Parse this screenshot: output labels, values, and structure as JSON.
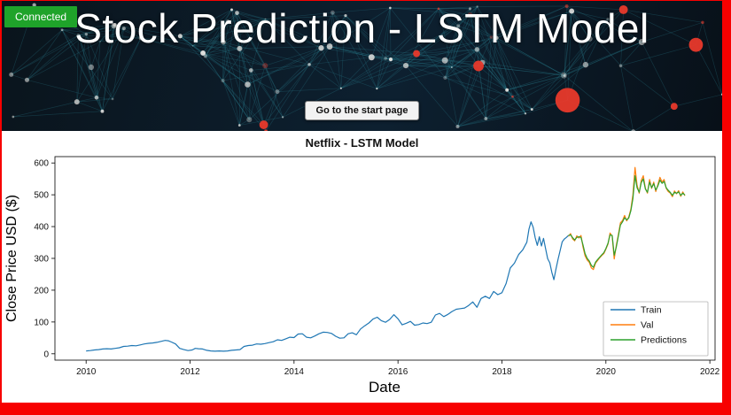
{
  "page": {
    "border_color": "#f70000"
  },
  "banner": {
    "title": "Stock Prediction - LSTM Model",
    "status_badge": "Connected",
    "status_color": "#1fa32a",
    "start_button": "Go to the start page",
    "accent_dot_color": "#e8392b",
    "line_color": "#2a8496"
  },
  "chart_data": {
    "type": "line",
    "title": "Netflix - LSTM Model",
    "xlabel": "Date",
    "ylabel": "Close Price USD ($)",
    "xlim": [
      2009.4,
      2022.1
    ],
    "ylim": [
      -20,
      620
    ],
    "xticks": [
      2010,
      2012,
      2014,
      2016,
      2018,
      2020,
      2022
    ],
    "yticks": [
      0,
      100,
      200,
      300,
      400,
      500,
      600
    ],
    "grid": false,
    "legend": {
      "position": "lower right",
      "entries": [
        "Train",
        "Val",
        "Predictions"
      ]
    },
    "series": [
      {
        "name": "Train",
        "color": "#1f77b4",
        "points": [
          [
            2010.0,
            9
          ],
          [
            2010.08,
            10
          ],
          [
            2010.16,
            12
          ],
          [
            2010.24,
            13
          ],
          [
            2010.32,
            15
          ],
          [
            2010.4,
            16
          ],
          [
            2010.48,
            15
          ],
          [
            2010.56,
            17
          ],
          [
            2010.64,
            19
          ],
          [
            2010.72,
            23
          ],
          [
            2010.8,
            24
          ],
          [
            2010.88,
            26
          ],
          [
            2010.96,
            25
          ],
          [
            2011.04,
            28
          ],
          [
            2011.12,
            31
          ],
          [
            2011.2,
            33
          ],
          [
            2011.28,
            34
          ],
          [
            2011.36,
            36
          ],
          [
            2011.44,
            39
          ],
          [
            2011.52,
            42
          ],
          [
            2011.58,
            41
          ],
          [
            2011.64,
            37
          ],
          [
            2011.72,
            31
          ],
          [
            2011.8,
            17
          ],
          [
            2011.88,
            13
          ],
          [
            2011.96,
            10
          ],
          [
            2012.04,
            12
          ],
          [
            2012.1,
            17
          ],
          [
            2012.16,
            16
          ],
          [
            2012.24,
            15
          ],
          [
            2012.32,
            11
          ],
          [
            2012.4,
            9
          ],
          [
            2012.48,
            8
          ],
          [
            2012.56,
            9
          ],
          [
            2012.64,
            8
          ],
          [
            2012.72,
            9
          ],
          [
            2012.8,
            11
          ],
          [
            2012.88,
            12
          ],
          [
            2012.96,
            13
          ],
          [
            2013.04,
            23
          ],
          [
            2013.12,
            26
          ],
          [
            2013.2,
            27
          ],
          [
            2013.28,
            31
          ],
          [
            2013.36,
            30
          ],
          [
            2013.44,
            32
          ],
          [
            2013.52,
            35
          ],
          [
            2013.6,
            38
          ],
          [
            2013.68,
            44
          ],
          [
            2013.76,
            42
          ],
          [
            2013.84,
            47
          ],
          [
            2013.92,
            52
          ],
          [
            2014.0,
            51
          ],
          [
            2014.08,
            62
          ],
          [
            2014.16,
            63
          ],
          [
            2014.24,
            52
          ],
          [
            2014.32,
            50
          ],
          [
            2014.4,
            56
          ],
          [
            2014.48,
            63
          ],
          [
            2014.56,
            68
          ],
          [
            2014.64,
            67
          ],
          [
            2014.72,
            64
          ],
          [
            2014.8,
            55
          ],
          [
            2014.88,
            49
          ],
          [
            2014.96,
            50
          ],
          [
            2015.04,
            63
          ],
          [
            2015.12,
            66
          ],
          [
            2015.2,
            60
          ],
          [
            2015.28,
            78
          ],
          [
            2015.36,
            88
          ],
          [
            2015.44,
            97
          ],
          [
            2015.52,
            109
          ],
          [
            2015.6,
            115
          ],
          [
            2015.68,
            104
          ],
          [
            2015.76,
            99
          ],
          [
            2015.84,
            108
          ],
          [
            2015.92,
            123
          ],
          [
            2016.0,
            110
          ],
          [
            2016.08,
            91
          ],
          [
            2016.16,
            96
          ],
          [
            2016.24,
            102
          ],
          [
            2016.32,
            90
          ],
          [
            2016.4,
            92
          ],
          [
            2016.48,
            97
          ],
          [
            2016.56,
            95
          ],
          [
            2016.64,
            99
          ],
          [
            2016.72,
            122
          ],
          [
            2016.8,
            127
          ],
          [
            2016.88,
            117
          ],
          [
            2016.96,
            124
          ],
          [
            2017.04,
            133
          ],
          [
            2017.12,
            140
          ],
          [
            2017.2,
            142
          ],
          [
            2017.28,
            144
          ],
          [
            2017.36,
            152
          ],
          [
            2017.44,
            163
          ],
          [
            2017.52,
            146
          ],
          [
            2017.6,
            174
          ],
          [
            2017.68,
            181
          ],
          [
            2017.76,
            174
          ],
          [
            2017.84,
            196
          ],
          [
            2017.92,
            186
          ],
          [
            2018.0,
            192
          ],
          [
            2018.08,
            221
          ],
          [
            2018.16,
            270
          ],
          [
            2018.24,
            285
          ],
          [
            2018.32,
            312
          ],
          [
            2018.4,
            327
          ],
          [
            2018.48,
            351
          ],
          [
            2018.52,
            392
          ],
          [
            2018.56,
            415
          ],
          [
            2018.6,
            398
          ],
          [
            2018.64,
            365
          ],
          [
            2018.68,
            341
          ],
          [
            2018.72,
            368
          ],
          [
            2018.76,
            339
          ],
          [
            2018.8,
            363
          ],
          [
            2018.84,
            330
          ],
          [
            2018.88,
            299
          ],
          [
            2018.92,
            286
          ],
          [
            2018.96,
            256
          ],
          [
            2019.0,
            233
          ],
          [
            2019.04,
            267
          ],
          [
            2019.08,
            297
          ],
          [
            2019.12,
            325
          ],
          [
            2019.16,
            352
          ],
          [
            2019.2,
            361
          ],
          [
            2019.24,
            366
          ],
          [
            2019.28,
            372
          ]
        ]
      },
      {
        "name": "Val",
        "color": "#ff7f0e",
        "points": [
          [
            2019.28,
            369
          ],
          [
            2019.32,
            378
          ],
          [
            2019.36,
            361
          ],
          [
            2019.4,
            355
          ],
          [
            2019.44,
            371
          ],
          [
            2019.48,
            364
          ],
          [
            2019.52,
            372
          ],
          [
            2019.56,
            335
          ],
          [
            2019.6,
            308
          ],
          [
            2019.64,
            295
          ],
          [
            2019.68,
            288
          ],
          [
            2019.72,
            270
          ],
          [
            2019.76,
            265
          ],
          [
            2019.8,
            285
          ],
          [
            2019.84,
            293
          ],
          [
            2019.88,
            302
          ],
          [
            2019.92,
            309
          ],
          [
            2019.96,
            315
          ],
          [
            2020.0,
            329
          ],
          [
            2020.04,
            345
          ],
          [
            2020.08,
            380
          ],
          [
            2020.12,
            369
          ],
          [
            2020.16,
            298
          ],
          [
            2020.2,
            340
          ],
          [
            2020.24,
            375
          ],
          [
            2020.28,
            412
          ],
          [
            2020.32,
            419
          ],
          [
            2020.36,
            435
          ],
          [
            2020.4,
            418
          ],
          [
            2020.44,
            430
          ],
          [
            2020.48,
            455
          ],
          [
            2020.52,
            500
          ],
          [
            2020.56,
            586
          ],
          [
            2020.6,
            530
          ],
          [
            2020.64,
            505
          ],
          [
            2020.68,
            545
          ],
          [
            2020.72,
            560
          ],
          [
            2020.76,
            520
          ],
          [
            2020.8,
            505
          ],
          [
            2020.84,
            548
          ],
          [
            2020.88,
            520
          ],
          [
            2020.92,
            540
          ],
          [
            2020.96,
            510
          ],
          [
            2021.0,
            532
          ],
          [
            2021.04,
            555
          ],
          [
            2021.08,
            540
          ],
          [
            2021.12,
            548
          ],
          [
            2021.16,
            520
          ],
          [
            2021.2,
            510
          ],
          [
            2021.24,
            505
          ],
          [
            2021.28,
            494
          ],
          [
            2021.32,
            512
          ],
          [
            2021.36,
            503
          ],
          [
            2021.4,
            513
          ],
          [
            2021.44,
            495
          ],
          [
            2021.48,
            509
          ],
          [
            2021.52,
            497
          ]
        ]
      },
      {
        "name": "Predictions",
        "color": "#2ca02c",
        "points": [
          [
            2019.28,
            372
          ],
          [
            2019.32,
            374
          ],
          [
            2019.36,
            365
          ],
          [
            2019.4,
            358
          ],
          [
            2019.44,
            366
          ],
          [
            2019.48,
            368
          ],
          [
            2019.52,
            366
          ],
          [
            2019.56,
            342
          ],
          [
            2019.6,
            315
          ],
          [
            2019.64,
            300
          ],
          [
            2019.68,
            292
          ],
          [
            2019.72,
            278
          ],
          [
            2019.76,
            272
          ],
          [
            2019.8,
            288
          ],
          [
            2019.84,
            296
          ],
          [
            2019.88,
            304
          ],
          [
            2019.92,
            311
          ],
          [
            2019.96,
            318
          ],
          [
            2020.0,
            331
          ],
          [
            2020.04,
            348
          ],
          [
            2020.08,
            374
          ],
          [
            2020.12,
            372
          ],
          [
            2020.16,
            310
          ],
          [
            2020.2,
            335
          ],
          [
            2020.24,
            370
          ],
          [
            2020.28,
            405
          ],
          [
            2020.32,
            415
          ],
          [
            2020.36,
            428
          ],
          [
            2020.4,
            421
          ],
          [
            2020.44,
            427
          ],
          [
            2020.48,
            450
          ],
          [
            2020.52,
            488
          ],
          [
            2020.56,
            560
          ],
          [
            2020.6,
            522
          ],
          [
            2020.64,
            508
          ],
          [
            2020.68,
            538
          ],
          [
            2020.72,
            550
          ],
          [
            2020.76,
            518
          ],
          [
            2020.8,
            508
          ],
          [
            2020.84,
            540
          ],
          [
            2020.88,
            522
          ],
          [
            2020.92,
            535
          ],
          [
            2020.96,
            515
          ],
          [
            2021.0,
            528
          ],
          [
            2021.04,
            546
          ],
          [
            2021.08,
            536
          ],
          [
            2021.12,
            542
          ],
          [
            2021.16,
            522
          ],
          [
            2021.2,
            514
          ],
          [
            2021.24,
            507
          ],
          [
            2021.28,
            498
          ],
          [
            2021.32,
            508
          ],
          [
            2021.36,
            505
          ],
          [
            2021.4,
            509
          ],
          [
            2021.44,
            498
          ],
          [
            2021.48,
            505
          ],
          [
            2021.52,
            499
          ]
        ]
      }
    ]
  }
}
